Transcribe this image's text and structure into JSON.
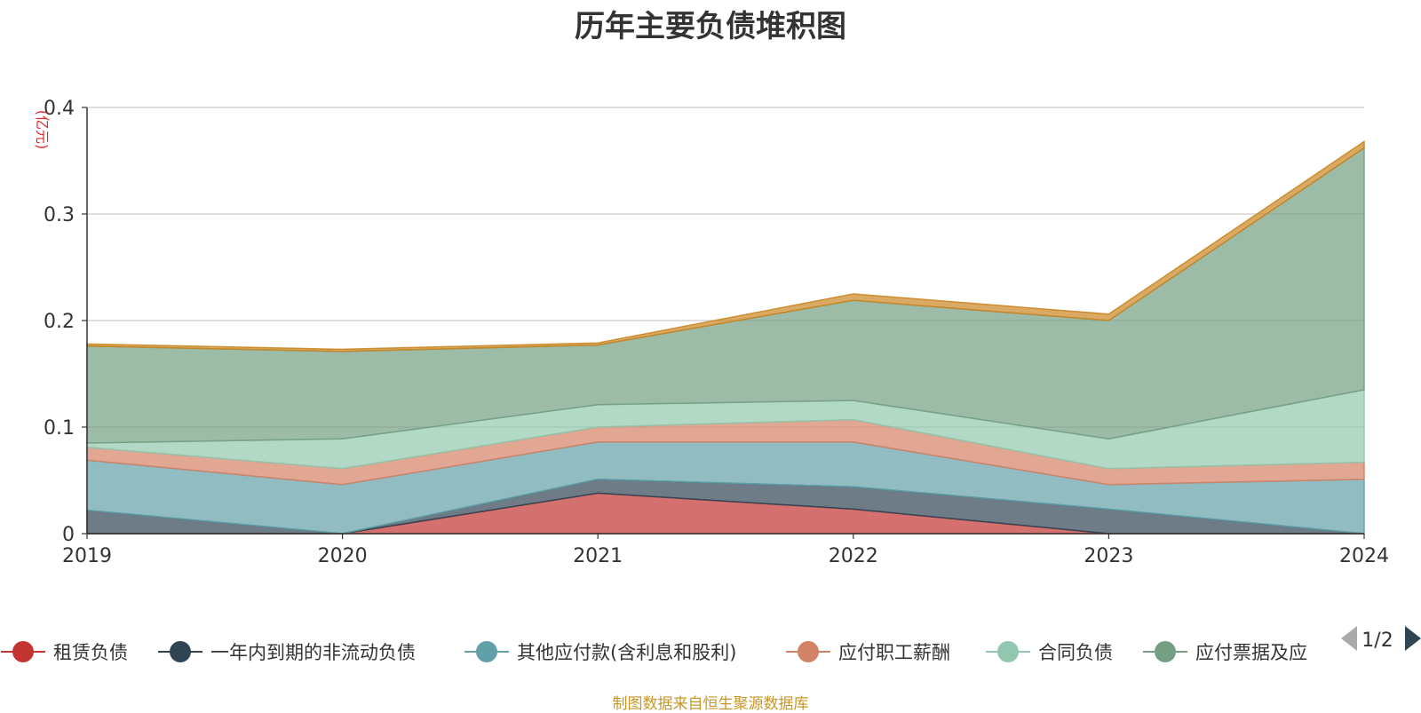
{
  "chart_data": {
    "type": "area",
    "stacked": true,
    "title": "历年主要负债堆积图",
    "ylabel": "(亿元)",
    "xlabel": "",
    "categories": [
      "2019",
      "2020",
      "2021",
      "2022",
      "2023",
      "2024"
    ],
    "ylim": [
      0,
      0.4
    ],
    "yticks": [
      0,
      0.1,
      0.2,
      0.3,
      0.4
    ],
    "ytick_labels": [
      "0",
      "0.1",
      "0.2",
      "0.3",
      "0.4"
    ],
    "grid": true,
    "legend_position": "bottom",
    "series": [
      {
        "name": "租赁负债",
        "color": "#c23531",
        "values": [
          0,
          0,
          0.038,
          0.023,
          0,
          0
        ]
      },
      {
        "name": "一年内到期的非流动负债",
        "color": "#2f4554",
        "values": [
          0.022,
          0,
          0.013,
          0.021,
          0.023,
          0
        ]
      },
      {
        "name": "其他应付款(含利息和股利)",
        "color": "#61a0a8",
        "values": [
          0.047,
          0.046,
          0.035,
          0.042,
          0.023,
          0.051
        ]
      },
      {
        "name": "应付职工薪酬",
        "color": "#d48265",
        "values": [
          0.012,
          0.015,
          0.014,
          0.021,
          0.015,
          0.016
        ]
      },
      {
        "name": "合同负债",
        "color": "#91c7ae",
        "values": [
          0.004,
          0.028,
          0.021,
          0.018,
          0.028,
          0.068
        ]
      },
      {
        "name": "应付票据及应付账款",
        "color": "#749f83",
        "values": [
          0.091,
          0.082,
          0.056,
          0.094,
          0.111,
          0.227
        ]
      },
      {
        "name": "",
        "color": "#ca8622",
        "values": [
          0.002,
          0.002,
          0.002,
          0.006,
          0.006,
          0.006
        ]
      }
    ]
  },
  "legend": {
    "items": [
      "租赁负债",
      "一年内到期的非流动负债",
      "其他应付款(含利息和股利)",
      "应付职工薪酬",
      "合同负债",
      "应付票据及应"
    ],
    "colors": [
      "#c23531",
      "#2f4554",
      "#61a0a8",
      "#d48265",
      "#91c7ae",
      "#749f83"
    ],
    "page": "1/2"
  },
  "footer": {
    "source": "制图数据来自恒生聚源数据库"
  }
}
